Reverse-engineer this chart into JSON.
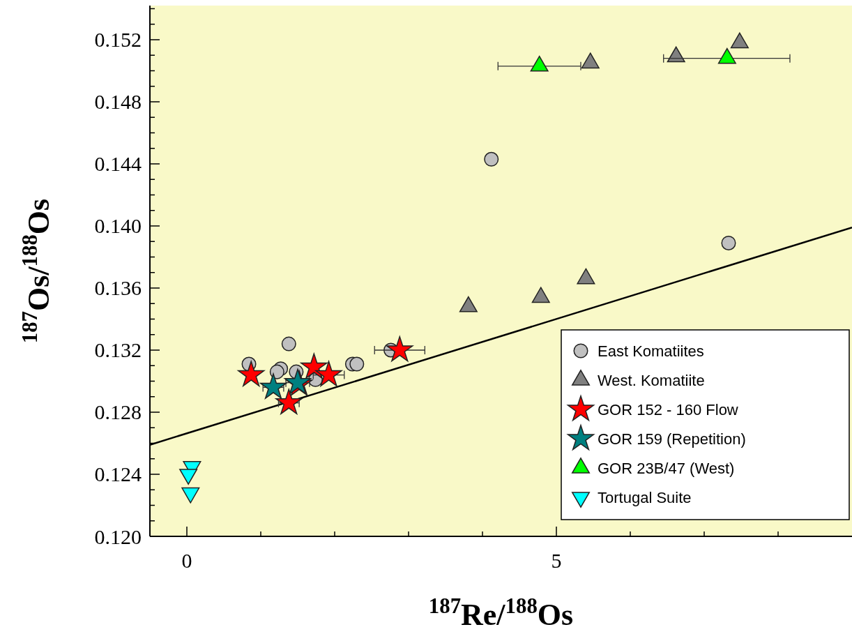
{
  "chart_data": {
    "type": "scatter",
    "xlabel": "$^{187}$Re/$^{188}$Os",
    "ylabel": "$^{187}$Os/$^{188}$Os",
    "xlim": [
      -0.5,
      9
    ],
    "ylim": [
      0.12,
      0.1542
    ],
    "xticks": [
      0,
      {
        "value": 1,
        "label": null
      },
      {
        "value": 2,
        "label": null
      },
      {
        "value": 3,
        "label": null
      },
      {
        "value": 4,
        "label": null
      },
      5,
      {
        "value": 6,
        "label": null
      },
      {
        "value": 7,
        "label": null
      },
      {
        "value": 8,
        "label": null
      }
    ],
    "yticks": [
      {
        "value": 0.12,
        "label": "0.120"
      },
      {
        "value": 0.121,
        "label": null
      },
      {
        "value": 0.122,
        "label": null
      },
      {
        "value": 0.123,
        "label": null
      },
      {
        "value": 0.124,
        "label": "0.124"
      },
      {
        "value": 0.125,
        "label": null
      },
      {
        "value": 0.126,
        "label": null
      },
      {
        "value": 0.127,
        "label": null
      },
      {
        "value": 0.128,
        "label": "0.128"
      },
      {
        "value": 0.129,
        "label": null
      },
      {
        "value": 0.13,
        "label": null
      },
      {
        "value": 0.131,
        "label": null
      },
      {
        "value": 0.132,
        "label": "0.132"
      },
      {
        "value": 0.133,
        "label": null
      },
      {
        "value": 0.134,
        "label": null
      },
      {
        "value": 0.135,
        "label": null
      },
      {
        "value": 0.136,
        "label": "0.136"
      },
      {
        "value": 0.137,
        "label": null
      },
      {
        "value": 0.138,
        "label": null
      },
      {
        "value": 0.139,
        "label": null
      },
      {
        "value": 0.14,
        "label": "0.140"
      },
      {
        "value": 0.141,
        "label": null
      },
      {
        "value": 0.142,
        "label": null
      },
      {
        "value": 0.143,
        "label": null
      },
      {
        "value": 0.144,
        "label": "0.144"
      },
      {
        "value": 0.145,
        "label": null
      },
      {
        "value": 0.146,
        "label": null
      },
      {
        "value": 0.147,
        "label": null
      },
      {
        "value": 0.148,
        "label": "0.148"
      },
      {
        "value": 0.149,
        "label": null
      },
      {
        "value": 0.15,
        "label": null
      },
      {
        "value": 0.151,
        "label": null
      },
      {
        "value": 0.152,
        "label": "0.152"
      },
      {
        "value": 0.153,
        "label": null
      },
      {
        "value": 0.154,
        "label": null
      }
    ],
    "grid": false,
    "legend": "bottom right",
    "series": [
      {
        "type": "line",
        "color": "#000000",
        "line_style": "solid",
        "x": [
          -0.5,
          9
        ],
        "values": [
          0.1259,
          0.1399
        ]
      },
      {
        "name": "East Komatiites",
        "color": "#c0c0c0",
        "marker": "circle",
        "x": [
          0.84,
          1.38,
          1.27,
          1.22,
          1.48,
          1.74,
          2.24,
          2.3,
          2.76,
          4.12,
          7.33
        ],
        "values": [
          0.1311,
          0.1324,
          0.1308,
          0.1306,
          0.1306,
          0.1301,
          0.1311,
          0.1311,
          0.132,
          0.1443,
          0.1389
        ]
      },
      {
        "name": "West. Komatiite",
        "color": "#808080",
        "marker": "triangle",
        "x": [
          3.81,
          4.79,
          5.4,
          5.46,
          6.62,
          7.48
        ],
        "values": [
          0.1348,
          0.1354,
          0.1366,
          0.1505,
          0.1509,
          0.1518
        ]
      },
      {
        "name": "GOR 152 - 160 Flow",
        "color": "#ff0000",
        "marker": "star",
        "x": [
          0.87,
          1.72,
          1.92,
          1.52,
          1.38,
          2.88
        ],
        "values": [
          0.1304,
          0.1309,
          0.1304,
          0.1298,
          0.1286,
          0.132
        ],
        "xerrors": [
          null,
          null,
          0.21,
          null,
          0.14,
          0.34
        ]
      },
      {
        "name": "GOR 159 (Repetition)",
        "color": "#008080",
        "marker": "star",
        "x": [
          1.17,
          1.5
        ],
        "values": [
          0.1296,
          0.1299
        ],
        "xerrors": [
          0.14,
          0.16
        ]
      },
      {
        "name": "GOR 23B/47 (West)",
        "color": "#00ff00",
        "marker": "triangle",
        "x": [
          4.77,
          7.31
        ],
        "values": [
          0.1503,
          0.1508
        ],
        "xerrors": [
          [
            4.21,
            5.33
          ],
          [
            6.45,
            8.16
          ]
        ]
      },
      {
        "name": "Tortugal Suite",
        "color": "#00ffff",
        "marker": "triangle-down",
        "x": [
          0.07,
          0.02,
          0.05
        ],
        "values": [
          0.1245,
          0.124,
          0.1228
        ]
      }
    ]
  }
}
